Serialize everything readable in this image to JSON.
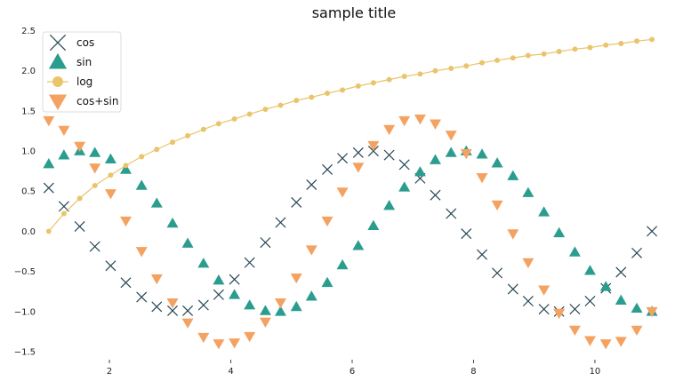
{
  "chart_data": {
    "type": "scatter",
    "title": "sample title",
    "xlabel": "",
    "ylabel": "",
    "xlim": [
      0.9,
      11.1
    ],
    "ylim": [
      -1.6,
      2.55
    ],
    "x_ticks": [
      2,
      4,
      6,
      8,
      10
    ],
    "y_ticks": [
      -1.5,
      -1.0,
      -0.5,
      0.0,
      0.5,
      1.0,
      1.5,
      2.0,
      2.5
    ],
    "x_tick_labels": [
      "2",
      "4",
      "6",
      "8",
      "10"
    ],
    "y_tick_labels": [
      "−1.5",
      "−1.0",
      "−0.5",
      "0.0",
      "0.5",
      "1.0",
      "1.5",
      "2.0",
      "2.5"
    ],
    "grid": false,
    "legend_position": "top-left",
    "x": [
      1.0,
      1.25,
      1.51,
      1.76,
      2.02,
      2.27,
      2.53,
      2.78,
      3.04,
      3.29,
      3.55,
      3.8,
      4.06,
      4.31,
      4.57,
      4.82,
      5.08,
      5.33,
      5.59,
      5.84,
      6.1,
      6.35,
      6.61,
      6.86,
      7.12,
      7.37,
      7.63,
      7.88,
      8.14,
      8.39,
      8.65,
      8.9,
      9.16,
      9.41,
      9.67,
      9.92,
      10.18,
      10.43,
      10.69,
      10.94
    ],
    "series": [
      {
        "name": "cos",
        "marker": "x",
        "color": "#264653",
        "values": [
          0.54,
          0.31,
          0.06,
          -0.19,
          -0.43,
          -0.64,
          -0.82,
          -0.94,
          -0.99,
          -0.99,
          -0.92,
          -0.79,
          -0.6,
          -0.39,
          -0.14,
          0.11,
          0.36,
          0.58,
          0.77,
          0.91,
          0.98,
          1.0,
          0.95,
          0.83,
          0.66,
          0.45,
          0.22,
          -0.03,
          -0.29,
          -0.52,
          -0.72,
          -0.87,
          -0.97,
          -1.0,
          -0.97,
          -0.87,
          -0.71,
          -0.51,
          -0.27,
          0.0
        ]
      },
      {
        "name": "sin",
        "marker": "triangle-up",
        "color": "#2a9d8f",
        "values": [
          0.84,
          0.95,
          1.0,
          0.98,
          0.9,
          0.77,
          0.57,
          0.35,
          0.1,
          -0.15,
          -0.4,
          -0.61,
          -0.79,
          -0.92,
          -0.99,
          -1.0,
          -0.94,
          -0.81,
          -0.64,
          -0.42,
          -0.18,
          0.07,
          0.32,
          0.55,
          0.74,
          0.89,
          0.98,
          1.0,
          0.96,
          0.85,
          0.69,
          0.48,
          0.24,
          -0.02,
          -0.26,
          -0.49,
          -0.69,
          -0.86,
          -0.96,
          -1.0
        ]
      },
      {
        "name": "log",
        "marker": "circle-line",
        "color": "#e9c46a",
        "values": [
          0.0,
          0.22,
          0.41,
          0.57,
          0.7,
          0.82,
          0.93,
          1.02,
          1.11,
          1.19,
          1.27,
          1.34,
          1.4,
          1.46,
          1.52,
          1.57,
          1.63,
          1.67,
          1.72,
          1.76,
          1.81,
          1.85,
          1.89,
          1.93,
          1.96,
          2.0,
          2.03,
          2.06,
          2.1,
          2.13,
          2.16,
          2.19,
          2.21,
          2.24,
          2.27,
          2.29,
          2.32,
          2.34,
          2.37,
          2.39
        ]
      },
      {
        "name": "cos+sin",
        "marker": "triangle-down",
        "color": "#f4a261",
        "values": [
          1.38,
          1.26,
          1.06,
          0.79,
          0.47,
          0.13,
          -0.25,
          -0.59,
          -0.89,
          -1.14,
          -1.32,
          -1.4,
          -1.39,
          -1.31,
          -1.13,
          -0.89,
          -0.58,
          -0.23,
          0.13,
          0.49,
          0.8,
          1.07,
          1.27,
          1.38,
          1.4,
          1.34,
          1.2,
          0.97,
          0.67,
          0.33,
          -0.03,
          -0.39,
          -0.73,
          -1.02,
          -1.23,
          -1.36,
          -1.4,
          -1.37,
          -1.23,
          -1.0
        ]
      }
    ]
  }
}
